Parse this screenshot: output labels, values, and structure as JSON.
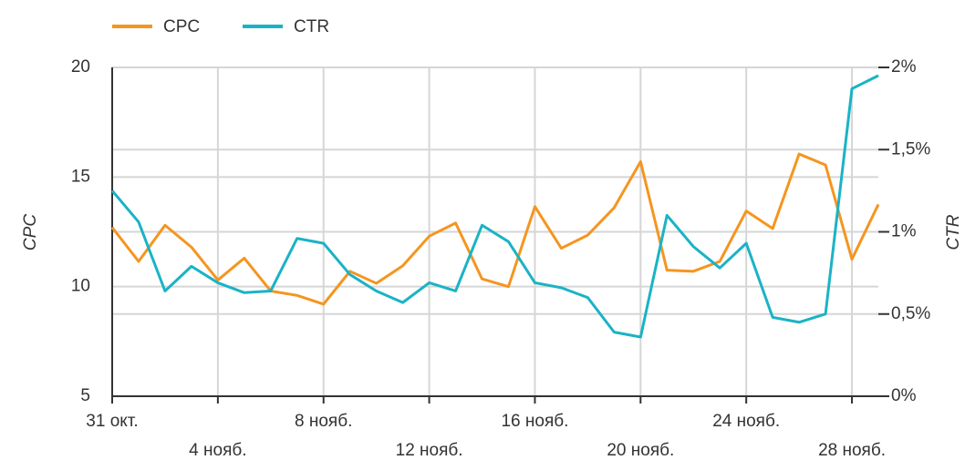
{
  "chart_data": {
    "type": "line",
    "categories": [
      "31 окт.",
      null,
      null,
      null,
      "4 нояб.",
      null,
      null,
      null,
      "8 нояб.",
      null,
      null,
      null,
      "12 нояб.",
      null,
      null,
      null,
      "16 нояб.",
      null,
      null,
      null,
      "20 нояб.",
      null,
      null,
      null,
      "24 нояб.",
      null,
      null,
      null,
      "28 нояб.",
      null
    ],
    "series": [
      {
        "name": "CPC",
        "color": "#f5951f",
        "values": [
          12.7,
          11.15,
          12.8,
          11.8,
          10.3,
          11.3,
          9.8,
          9.6,
          9.2,
          10.7,
          10.15,
          10.95,
          12.3,
          12.9,
          10.35,
          10.0,
          13.65,
          11.75,
          12.35,
          13.6,
          15.7,
          10.75,
          10.7,
          11.15,
          13.45,
          12.65,
          16.05,
          15.55,
          11.25,
          13.75
        ]
      },
      {
        "name": "CTR",
        "color": "#1ab3c6",
        "axis": "y2",
        "values": [
          1.25,
          1.06,
          0.64,
          0.79,
          0.69,
          0.63,
          0.64,
          0.96,
          0.93,
          0.74,
          0.64,
          0.57,
          0.69,
          0.64,
          1.04,
          0.94,
          0.69,
          0.66,
          0.6,
          0.39,
          0.36,
          1.1,
          0.91,
          0.78,
          0.93,
          0.48,
          0.45,
          0.5,
          1.87,
          1.95
        ]
      }
    ],
    "y_label": "CPC",
    "y2_label": "CTR",
    "ylim": [
      5,
      20
    ],
    "yticks": [
      5,
      10,
      15,
      20
    ],
    "y2lim": [
      0,
      2
    ],
    "y2ticks": [
      {
        "value": 0,
        "label": "0%"
      },
      {
        "value": 0.5,
        "label": "0,5%"
      },
      {
        "value": 1,
        "label": "1%"
      },
      {
        "value": 1.5,
        "label": "1,5%"
      },
      {
        "value": 2,
        "label": "2%"
      }
    ],
    "grid": true,
    "legend": "top-left"
  }
}
